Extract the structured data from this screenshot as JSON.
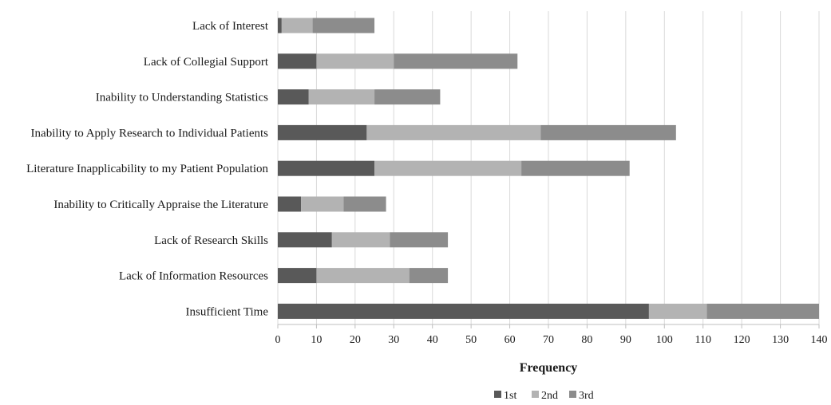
{
  "chart_data": {
    "type": "bar",
    "orientation": "horizontal",
    "stacked": true,
    "categories": [
      "Lack of Interest",
      "Lack of Collegial Support",
      "Inability to Understanding Statistics",
      "Inability to Apply Research to Individual Patients",
      "Literature Inapplicability to my Patient Population",
      "Inability to Critically Appraise the Literature",
      "Lack of Research Skills",
      "Lack of Information Resources",
      "Insufficient Time"
    ],
    "series": [
      {
        "name": "1st",
        "color": "#595959",
        "values": [
          1,
          10,
          8,
          23,
          25,
          6,
          14,
          10,
          96
        ]
      },
      {
        "name": "2nd",
        "color": "#b3b3b3",
        "values": [
          8,
          20,
          17,
          45,
          38,
          11,
          15,
          24,
          15
        ]
      },
      {
        "name": "3rd",
        "color": "#8c8c8c",
        "values": [
          16,
          32,
          17,
          35,
          28,
          11,
          15,
          10,
          29
        ]
      }
    ],
    "xlabel": "Frequency",
    "ylabel": "",
    "xlim": [
      0,
      140
    ],
    "xticks": [
      "0",
      "10",
      "20",
      "30",
      "40",
      "50",
      "60",
      "70",
      "80",
      "90",
      "100",
      "110",
      "120",
      "130",
      "140"
    ],
    "grid": "vertical",
    "legend_position": "bottom"
  }
}
